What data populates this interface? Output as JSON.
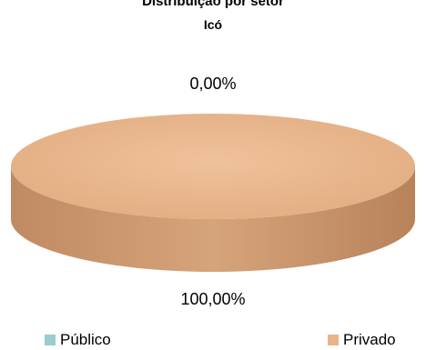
{
  "chart_data": {
    "type": "pie",
    "title": "Distribuição por setor",
    "subtitle": "Icó",
    "style": "3d",
    "legend_position": "bottom",
    "series": [
      {
        "name": "Público",
        "value": 0.0,
        "label": "0,00%",
        "color": "#9ccccc"
      },
      {
        "name": "Privado",
        "value": 100.0,
        "label": "100,00%",
        "color": "#e8b48a"
      }
    ]
  }
}
